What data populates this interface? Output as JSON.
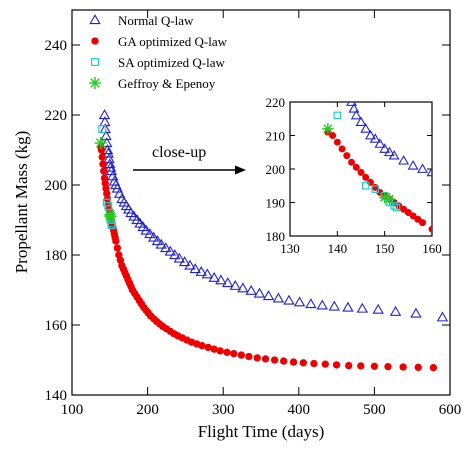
{
  "chart_data": {
    "type": "scatter",
    "xlabel": "Flight Time (days)",
    "ylabel": "Propellant Mass (kg)",
    "xlim": [
      100,
      600
    ],
    "ylim": [
      140,
      250
    ],
    "xticks": [
      100,
      200,
      300,
      400,
      500,
      600
    ],
    "yticks": [
      140,
      160,
      180,
      200,
      220,
      240
    ],
    "legend_position": "top-left",
    "annotation": "close-up",
    "colors": {
      "normal": "#2222cc",
      "ga": "#ee0000",
      "sa": "#22cccc",
      "geffroy": "#22cc22"
    },
    "series": [
      {
        "name": "Normal Q-law",
        "marker": "triangle-open",
        "color": "#2222cc",
        "x": [
          143,
          143.5,
          144,
          145,
          146,
          147,
          148,
          149,
          150,
          151,
          152,
          154,
          156,
          158,
          160,
          163,
          166,
          169,
          172,
          175,
          178,
          182,
          186,
          190,
          194,
          198,
          203,
          208,
          213,
          218,
          224,
          230,
          236,
          242,
          249,
          256,
          263,
          271,
          279,
          288,
          297,
          306,
          316,
          326,
          337,
          348,
          360,
          373,
          387,
          401,
          416,
          431,
          447,
          465,
          484,
          505,
          528,
          555,
          590
        ],
        "y": [
          220,
          218,
          216,
          214,
          212,
          210,
          209,
          207.5,
          206,
          205,
          204,
          202.5,
          201,
          200,
          199,
          197.5,
          196,
          195,
          194,
          193,
          192,
          191,
          190,
          189,
          188,
          187,
          186,
          185,
          184,
          183,
          182,
          181,
          180,
          179,
          178,
          177,
          176,
          175.2,
          174.5,
          173.5,
          172.8,
          172,
          171.2,
          170.5,
          169.8,
          169,
          168.3,
          167.6,
          167,
          166.5,
          166,
          165.6,
          165.3,
          165,
          164.7,
          164.4,
          163.8,
          163.3,
          162.2
        ]
      },
      {
        "name": "GA optimized Q-law",
        "marker": "circle-filled",
        "color": "#ee0000",
        "x": [
          138,
          139,
          140,
          141,
          142,
          143,
          144,
          145,
          146,
          147,
          148,
          149,
          150,
          151,
          152,
          153,
          154,
          155,
          156,
          157,
          158,
          160,
          162,
          164,
          166,
          168,
          170,
          172,
          174,
          176,
          178,
          180,
          183,
          186,
          189,
          192,
          195,
          198,
          201,
          204,
          208,
          212,
          216,
          220,
          225,
          230,
          235,
          240,
          246,
          252,
          258,
          265,
          272,
          280,
          288,
          296,
          305,
          314,
          324,
          334,
          345,
          356,
          368,
          380,
          393,
          406,
          420,
          435,
          450,
          466,
          482,
          500,
          518,
          538,
          558,
          578
        ],
        "y": [
          211,
          210,
          208,
          206,
          204,
          202,
          200.5,
          199,
          197.5,
          196,
          194.5,
          193,
          192,
          191,
          190,
          189,
          188,
          187,
          186,
          185,
          184,
          182,
          180,
          178.5,
          177,
          176,
          175,
          174,
          173,
          172,
          171,
          170,
          169,
          168,
          167,
          166,
          165,
          164.2,
          163.4,
          162.6,
          161.8,
          161,
          160.3,
          159.6,
          158.9,
          158.2,
          157.5,
          156.9,
          156.3,
          155.7,
          155.1,
          154.6,
          154.1,
          153.6,
          153.1,
          152.6,
          152.2,
          151.8,
          151.4,
          151,
          150.6,
          150.3,
          150,
          149.7,
          149.4,
          149.2,
          149,
          148.8,
          148.6,
          148.4,
          148.3,
          148.2,
          148.1,
          148,
          147.9,
          147.8
        ]
      },
      {
        "name": "SA optimized Q-law",
        "marker": "square-open",
        "color": "#22cccc",
        "x": [
          140,
          146,
          148,
          150,
          151,
          152,
          152.5
        ],
        "y": [
          216,
          195,
          194,
          192,
          190,
          189,
          188.5
        ]
      },
      {
        "name": "Geffroy & Epenoy",
        "marker": "asterisk",
        "color": "#22cc22",
        "x": [
          138,
          150,
          151
        ],
        "y": [
          212,
          191.5,
          191
        ]
      }
    ],
    "inset": {
      "xlim": [
        130,
        160
      ],
      "ylim": [
        180,
        220
      ],
      "xticks": [
        130,
        140,
        150,
        160
      ],
      "yticks": [
        180,
        190,
        200,
        210,
        220
      ]
    }
  }
}
